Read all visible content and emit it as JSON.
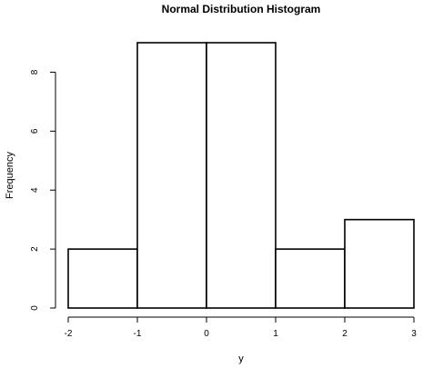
{
  "chart_data": {
    "type": "bar",
    "title": "Normal Distribution Histogram",
    "xlabel": "y",
    "ylabel": "Frequency",
    "bins": [
      {
        "from": -2,
        "to": -1,
        "count": 2
      },
      {
        "from": -1,
        "to": 0,
        "count": 9
      },
      {
        "from": 0,
        "to": 1,
        "count": 9
      },
      {
        "from": 1,
        "to": 2,
        "count": 2
      },
      {
        "from": 2,
        "to": 3,
        "count": 3
      }
    ],
    "xlim": [
      -2,
      3
    ],
    "ylim": [
      0,
      9
    ],
    "x_ticks": [
      -2,
      -1,
      0,
      1,
      2,
      3
    ],
    "y_ticks": [
      0,
      2,
      4,
      6,
      8
    ],
    "reference_line_x": 0,
    "grid": false
  }
}
